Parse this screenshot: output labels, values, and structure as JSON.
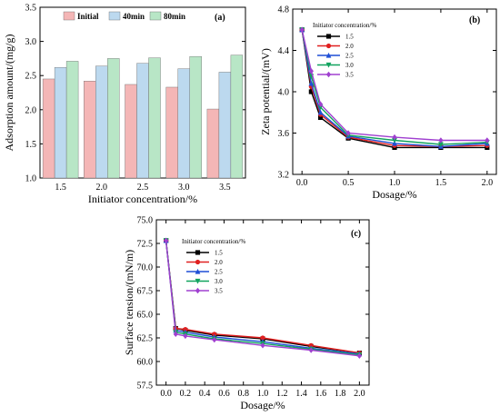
{
  "chart_data": [
    {
      "type": "bar",
      "panel_label": "(a)",
      "categories": [
        "1.5",
        "2.0",
        "2.5",
        "3.0",
        "3.5"
      ],
      "series": [
        {
          "name": "Initial",
          "color": "#f4b6b6",
          "values": [
            2.45,
            2.42,
            2.37,
            2.33,
            2.01
          ]
        },
        {
          "name": "40min",
          "color": "#bcd9ef",
          "values": [
            2.62,
            2.64,
            2.68,
            2.6,
            2.55
          ]
        },
        {
          "name": "80min",
          "color": "#b8e6c6",
          "values": [
            2.71,
            2.75,
            2.76,
            2.78,
            2.8
          ]
        }
      ],
      "xlabel": "Initiator concentration/%",
      "ylabel": "Adsorption amount/(mg/g)",
      "ylim": [
        1.0,
        3.5
      ],
      "yticks": [
        "1.0",
        "1.5",
        "2.0",
        "2.5",
        "3.0",
        "3.5"
      ],
      "legend_position": "top-center"
    },
    {
      "type": "line",
      "panel_label": "(b)",
      "legend_title": "Initiator concentration/%",
      "x": [
        0,
        0.1,
        0.2,
        0.5,
        1.0,
        1.5,
        2.0
      ],
      "series": [
        {
          "name": "1.5",
          "color": "#000000",
          "marker": "square",
          "values": [
            4.6,
            4.0,
            3.75,
            3.55,
            3.46,
            3.46,
            3.46
          ]
        },
        {
          "name": "2.0",
          "color": "#e02020",
          "marker": "circle",
          "values": [
            4.6,
            4.05,
            3.78,
            3.56,
            3.48,
            3.47,
            3.48
          ]
        },
        {
          "name": "2.5",
          "color": "#1f4fd6",
          "marker": "triangle",
          "values": [
            4.6,
            4.08,
            3.8,
            3.57,
            3.5,
            3.47,
            3.5
          ]
        },
        {
          "name": "3.0",
          "color": "#11a35e",
          "marker": "triangle-down",
          "values": [
            4.6,
            4.15,
            3.85,
            3.58,
            3.53,
            3.49,
            3.51
          ]
        },
        {
          "name": "3.5",
          "color": "#a040d0",
          "marker": "diamond",
          "values": [
            4.6,
            4.2,
            3.88,
            3.6,
            3.56,
            3.53,
            3.53
          ]
        }
      ],
      "xlabel": "Dosage/%",
      "ylabel": "Zeta potential/(mV)",
      "xlim": [
        -0.1,
        2.1
      ],
      "ylim": [
        3.2,
        4.8
      ],
      "xticks": [
        "0.0",
        "0.5",
        "1.0",
        "1.5",
        "2.0"
      ],
      "yticks": [
        "3.2",
        "3.6",
        "4.0",
        "4.4",
        "4.8"
      ],
      "legend_position": "top-center"
    },
    {
      "type": "line",
      "panel_label": "(c)",
      "legend_title": "Initiator concentration/%",
      "x": [
        0,
        0.1,
        0.2,
        0.5,
        1.0,
        1.5,
        2.0
      ],
      "series": [
        {
          "name": "1.5",
          "color": "#000000",
          "marker": "square",
          "values": [
            72.8,
            63.5,
            63.3,
            62.8,
            62.4,
            61.6,
            60.9
          ]
        },
        {
          "name": "2.0",
          "color": "#e02020",
          "marker": "circle",
          "values": [
            72.8,
            63.5,
            63.4,
            62.9,
            62.5,
            61.7,
            60.9
          ]
        },
        {
          "name": "2.5",
          "color": "#1f4fd6",
          "marker": "triangle",
          "values": [
            72.8,
            63.3,
            63.1,
            62.6,
            62.1,
            61.4,
            60.8
          ]
        },
        {
          "name": "3.0",
          "color": "#11a35e",
          "marker": "triangle-down",
          "values": [
            72.8,
            63.1,
            62.9,
            62.4,
            61.9,
            61.3,
            60.7
          ]
        },
        {
          "name": "3.5",
          "color": "#a040d0",
          "marker": "diamond",
          "values": [
            72.8,
            62.9,
            62.7,
            62.3,
            61.7,
            61.2,
            60.6
          ]
        }
      ],
      "xlabel": "Dosage/%",
      "ylabel": "Surface tension/(mN/m)",
      "xlim": [
        -0.1,
        2.1
      ],
      "ylim": [
        57.5,
        75.0
      ],
      "xticks": [
        "0.0",
        "0.2",
        "0.4",
        "0.6",
        "0.8",
        "1.0",
        "1.2",
        "1.4",
        "1.6",
        "1.8",
        "2.0"
      ],
      "yticks": [
        "57.5",
        "60.0",
        "62.5",
        "65.0",
        "67.5",
        "70.0",
        "72.5",
        "75.0"
      ],
      "legend_position": "top-center"
    }
  ]
}
